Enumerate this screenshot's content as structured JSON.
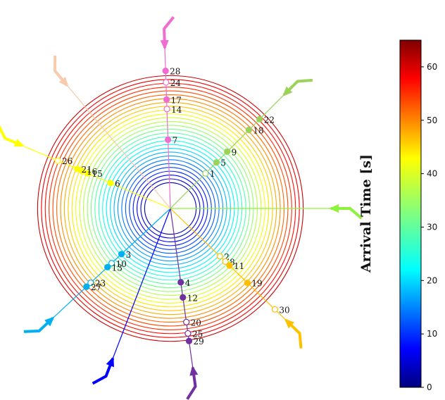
{
  "chart_data": {
    "type": "scatter",
    "description_free": true,
    "wavefront_arrival_times_s": [
      4,
      6,
      8,
      10,
      12,
      14,
      16,
      18,
      20,
      22,
      24,
      26,
      28,
      30,
      32,
      34,
      36,
      38,
      40,
      42,
      44,
      46,
      48,
      50,
      52,
      54,
      56,
      58,
      60
    ],
    "rays": [
      {
        "id": "A",
        "azimuth_deg": -2,
        "color": "#f06cd0",
        "arrival_time_s": 62
      },
      {
        "id": "B",
        "azimuth_deg": 45,
        "color": "#9bd35a",
        "arrival_time_s": 40
      },
      {
        "id": "C",
        "azimuth_deg": 90,
        "color": "#8cf23a",
        "arrival_time_s": 30
      },
      {
        "id": "D",
        "azimuth_deg": 134,
        "color": "#ffc000",
        "arrival_time_s": 48
      },
      {
        "id": "E",
        "azimuth_deg": 172,
        "color": "#7030a0",
        "arrival_time_s": 58
      },
      {
        "id": "F",
        "azimuth_deg": 201,
        "color": "#0000ff",
        "arrival_time_s": 6
      },
      {
        "id": "G",
        "azimuth_deg": 227,
        "color": "#00b0f0",
        "arrival_time_s": 26
      },
      {
        "id": "H",
        "azimuth_deg": 293,
        "color": "#ffff00",
        "arrival_time_s": 44
      },
      {
        "id": "I",
        "azimuth_deg": 320,
        "color": "#f7cbac",
        "arrival_time_s": 8
      }
    ],
    "stations": [
      {
        "label": "1",
        "ray": "B",
        "distance_s": 13,
        "filled": false
      },
      {
        "label": "5",
        "ray": "B",
        "distance_s": 17,
        "filled": true
      },
      {
        "label": "9",
        "ray": "B",
        "distance_s": 21,
        "filled": true
      },
      {
        "label": "18",
        "ray": "B",
        "distance_s": 29,
        "filled": true
      },
      {
        "label": "22",
        "ray": "B",
        "distance_s": 33,
        "filled": true
      },
      {
        "label": "7",
        "ray": "A",
        "distance_s": 18,
        "filled": true
      },
      {
        "label": "14",
        "ray": "A",
        "distance_s": 26,
        "filled": false
      },
      {
        "label": "17",
        "ray": "A",
        "distance_s": 28.5,
        "filled": true
      },
      {
        "label": "24",
        "ray": "A",
        "distance_s": 33,
        "filled": false
      },
      {
        "label": "28",
        "ray": "A",
        "distance_s": 36,
        "filled": true
      },
      {
        "label": "6",
        "ray": "H",
        "distance_s": 17,
        "filled": true
      },
      {
        "label": "15",
        "ray": "H",
        "distance_s": 23.5,
        "filled": true
      },
      {
        "label": "16",
        "ray": "H",
        "distance_s": 25,
        "filled": true
      },
      {
        "label": "21",
        "ray": "H",
        "distance_s": 26.5,
        "filled": true
      },
      {
        "label": "26",
        "ray": "H",
        "distance_s": 32,
        "filled": false
      },
      {
        "label": "2",
        "ray": "D",
        "distance_s": 18,
        "filled": false
      },
      {
        "label": "8",
        "ray": "D",
        "distance_s": 20,
        "filled": false
      },
      {
        "label": "11",
        "ray": "D",
        "distance_s": 21.5,
        "filled": true
      },
      {
        "label": "19",
        "ray": "D",
        "distance_s": 28,
        "filled": true
      },
      {
        "label": "30",
        "ray": "D",
        "distance_s": 38,
        "filled": false
      },
      {
        "label": "4",
        "ray": "E",
        "distance_s": 19.5,
        "filled": true
      },
      {
        "label": "12",
        "ray": "E",
        "distance_s": 23.5,
        "filled": true
      },
      {
        "label": "20",
        "ray": "E",
        "distance_s": 30,
        "filled": false
      },
      {
        "label": "25",
        "ray": "E",
        "distance_s": 33,
        "filled": false
      },
      {
        "label": "29",
        "ray": "E",
        "distance_s": 35,
        "filled": true
      },
      {
        "label": "3",
        "ray": "G",
        "distance_s": 17.5,
        "filled": true
      },
      {
        "label": "10",
        "ray": "G",
        "distance_s": 21,
        "filled": false
      },
      {
        "label": "13",
        "ray": "G",
        "distance_s": 22.5,
        "filled": true
      },
      {
        "label": "23",
        "ray": "G",
        "distance_s": 28.5,
        "filled": false
      },
      {
        "label": "27",
        "ray": "G",
        "distance_s": 30,
        "filled": true
      }
    ],
    "colorbar": {
      "label": "Arrival Time [s]",
      "colormap": "jet",
      "min": 0,
      "max": 65,
      "ticks": [
        0,
        10,
        20,
        30,
        40,
        50,
        60
      ]
    }
  }
}
